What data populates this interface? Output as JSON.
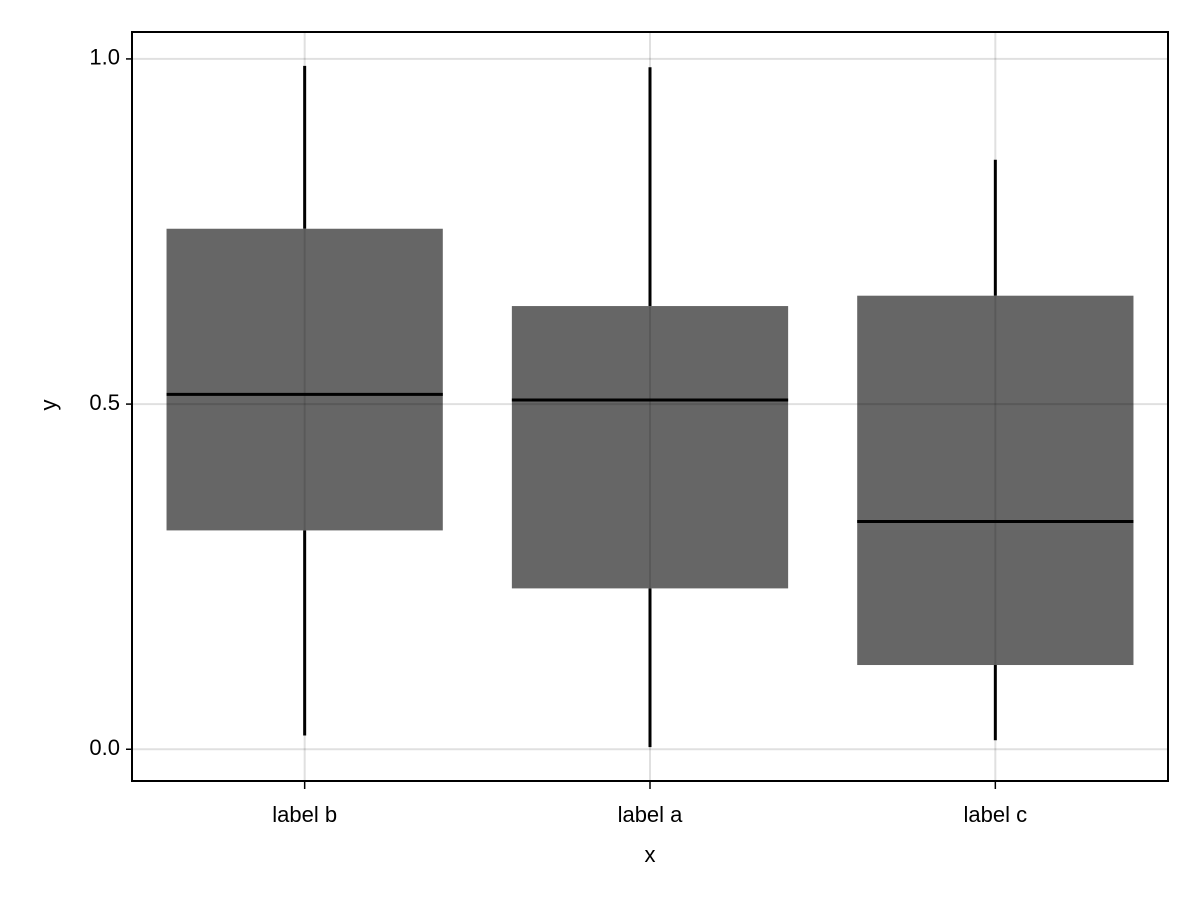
{
  "chart_data": {
    "type": "box",
    "x_label": "x",
    "y_label": "y",
    "categories": [
      "label b",
      "label a",
      "label c"
    ],
    "min": [
      0.02,
      0.003,
      0.013
    ],
    "q1": [
      0.317,
      0.233,
      0.122
    ],
    "median": [
      0.514,
      0.506,
      0.33
    ],
    "q3": [
      0.754,
      0.642,
      0.657
    ],
    "max": [
      0.99,
      0.988,
      0.854
    ],
    "color": "#666666",
    "ylim": [
      -0.046,
      1.039
    ],
    "yticks": [
      {
        "value": 0,
        "label": "0.0"
      },
      0.5,
      {
        "value": 1,
        "label": "1.0"
      }
    ],
    "grid": true
  }
}
